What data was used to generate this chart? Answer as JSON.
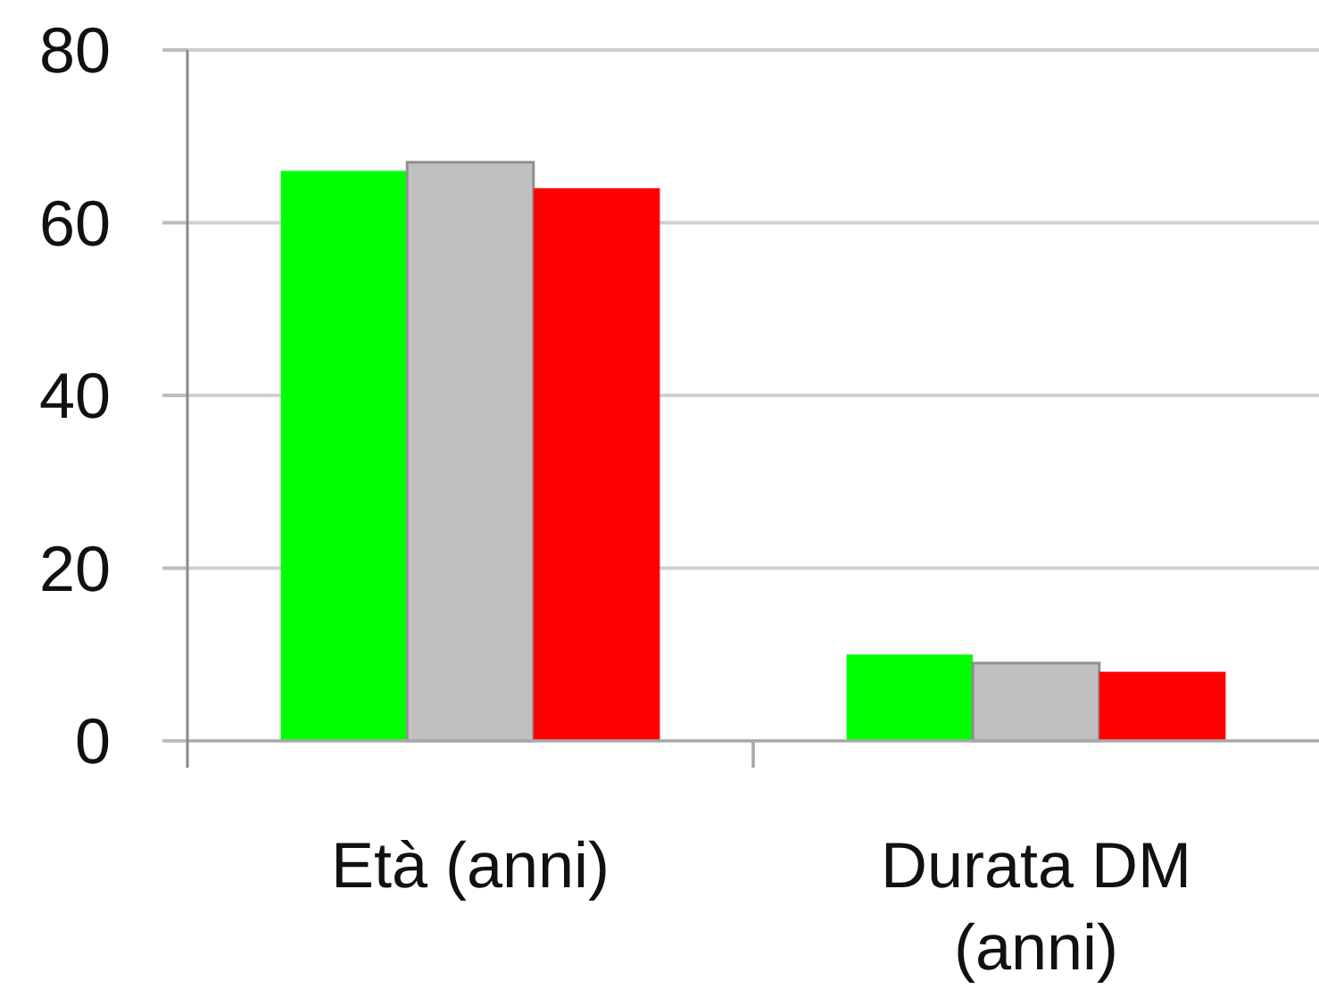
{
  "chart_data": {
    "type": "bar",
    "categories": [
      "Età (anni)",
      "Durata DM (anni)"
    ],
    "series": [
      {
        "color": "#00ff00",
        "values": [
          66,
          10
        ]
      },
      {
        "color": "#c0c0c0",
        "values": [
          67,
          9
        ]
      },
      {
        "color": "#ff0000",
        "values": [
          64,
          8
        ]
      }
    ],
    "ylim": [
      0,
      80
    ],
    "yticks": [
      0,
      20,
      40,
      60,
      80
    ],
    "grid": "y"
  }
}
